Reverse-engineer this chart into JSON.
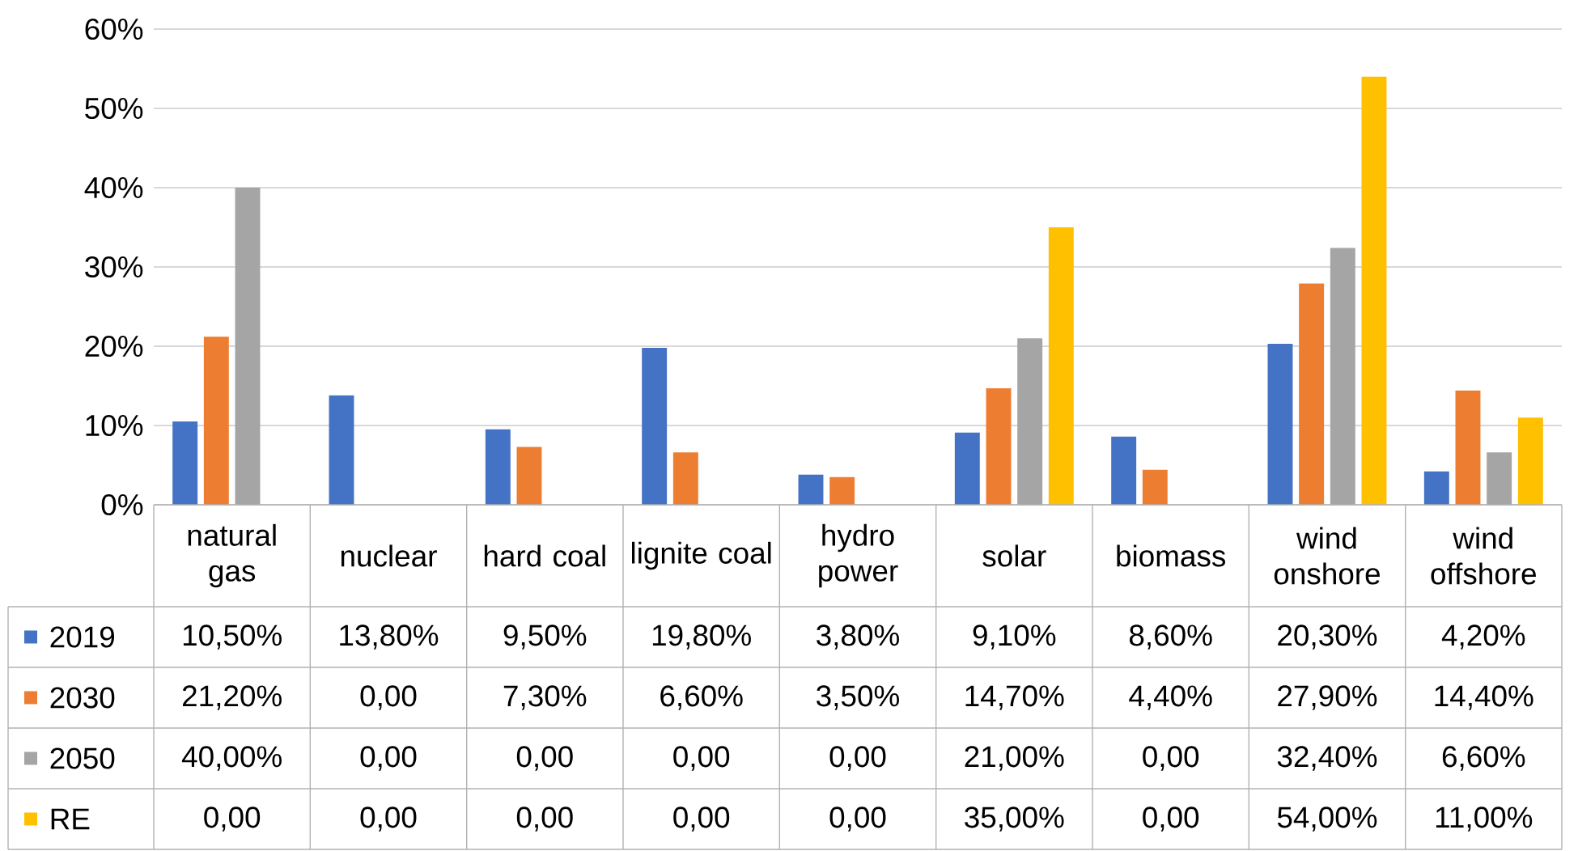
{
  "chart_data": {
    "type": "bar",
    "categories": [
      "natural gas",
      "nuclear",
      "hard coal",
      "lignite coal",
      "hydro power",
      "solar",
      "biomass",
      "wind onshore",
      "wind offshore"
    ],
    "series": [
      {
        "name": "2019",
        "color": "#4472c4",
        "values": [
          10.5,
          13.8,
          9.5,
          19.8,
          3.8,
          9.1,
          8.6,
          20.3,
          4.2
        ],
        "value_labels": [
          "10,50%",
          "13,80%",
          "9,50%",
          "19,80%",
          "3,80%",
          "9,10%",
          "8,60%",
          "20,30%",
          "4,20%"
        ]
      },
      {
        "name": "2030",
        "color": "#ed7d31",
        "values": [
          21.2,
          0,
          7.3,
          6.6,
          3.5,
          14.7,
          4.4,
          27.9,
          14.4
        ],
        "value_labels": [
          "21,20%",
          "0,00",
          "7,30%",
          "6,60%",
          "3,50%",
          "14,70%",
          "4,40%",
          "27,90%",
          "14,40%"
        ]
      },
      {
        "name": "2050",
        "color": "#a5a5a5",
        "values": [
          40.0,
          0,
          0,
          0,
          0,
          21.0,
          0,
          32.4,
          6.6
        ],
        "value_labels": [
          "40,00%",
          "0,00",
          "0,00",
          "0,00",
          "0,00",
          "21,00%",
          "0,00",
          "32,40%",
          "6,60%"
        ]
      },
      {
        "name": "RE",
        "color": "#ffc000",
        "values": [
          0,
          0,
          0,
          0,
          0,
          35.0,
          0,
          54.0,
          11.0
        ],
        "value_labels": [
          "0,00",
          "0,00",
          "0,00",
          "0,00",
          "0,00",
          "35,00%",
          "0,00",
          "54,00%",
          "11,00%"
        ]
      }
    ],
    "ylim": [
      0,
      60
    ],
    "yticks": [
      {
        "value": 0,
        "label": "0%"
      },
      {
        "value": 10,
        "label": "10%"
      },
      {
        "value": 20,
        "label": "20%"
      },
      {
        "value": 30,
        "label": "30%"
      },
      {
        "value": 40,
        "label": "40%"
      },
      {
        "value": 50,
        "label": "50%"
      },
      {
        "value": 60,
        "label": "60%"
      }
    ],
    "grid": "y",
    "legend": "bottom"
  }
}
